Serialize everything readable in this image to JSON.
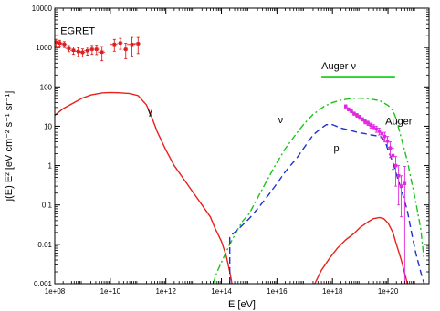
{
  "chart_data": {
    "type": "line",
    "title": "",
    "xlabel": "E [eV]",
    "ylabel": "j(E) E² [eV cm⁻² s⁻¹ sr⁻¹]",
    "x_scale": "log",
    "y_scale": "log",
    "xlim": [
      100000000.0,
      3e+21
    ],
    "ylim": [
      0.001,
      10000
    ],
    "grid": false,
    "x_ticks": [
      {
        "value": 100000000.0,
        "label": "1e+08"
      },
      {
        "value": 10000000000.0,
        "label": "1e+10"
      },
      {
        "value": 1000000000000.0,
        "label": "1e+12"
      },
      {
        "value": 100000000000000.0,
        "label": "1e+14"
      },
      {
        "value": 1e+16,
        "label": "1e+16"
      },
      {
        "value": 1e+18,
        "label": "1e+18"
      },
      {
        "value": 1e+20,
        "label": "1e+20"
      }
    ],
    "y_ticks": [
      {
        "value": 0.001,
        "label": "0.001"
      },
      {
        "value": 0.01,
        "label": "0.01"
      },
      {
        "value": 0.1,
        "label": "0.1"
      },
      {
        "value": 1,
        "label": "1"
      },
      {
        "value": 10,
        "label": "10"
      },
      {
        "value": 100,
        "label": "100"
      },
      {
        "value": 1000,
        "label": "1000"
      },
      {
        "value": 10000,
        "label": "10000"
      }
    ],
    "annotations": [
      {
        "text": "EGRET",
        "x": 160000000.0,
        "y": 2200
      },
      {
        "text": "γ",
        "x": 220000000000.0,
        "y": 20
      },
      {
        "text": "ν",
        "x": 1.1e+16,
        "y": 12
      },
      {
        "text": "p",
        "x": 1.1e+18,
        "y": 2.3
      },
      {
        "text": "Auger",
        "x": 8e+19,
        "y": 11
      },
      {
        "text": "Auger ν",
        "x": 4e+17,
        "y": 280
      }
    ],
    "series": [
      {
        "kind": "curve",
        "color": "#e8201c",
        "dash": "solid",
        "x": [
          100000000.0,
          200000000.0,
          500000000.0,
          1000000000.0,
          2000000000.0,
          5000000000.0,
          10000000000.0,
          20000000000.0,
          50000000000.0,
          100000000000.0,
          200000000000.0,
          300000000000.0,
          500000000000.0,
          1000000000000.0,
          2000000000000.0,
          5000000000000.0,
          10000000000000.0,
          20000000000000.0,
          40000000000000.0,
          60000000000000.0,
          100000000000000.0,
          150000000000000.0,
          200000000000000.0,
          240000000000000.0
        ],
        "y": [
          19,
          28,
          40,
          52,
          62,
          70,
          72,
          71,
          68,
          60,
          35,
          18,
          7,
          2.5,
          1.0,
          0.4,
          0.2,
          0.1,
          0.05,
          0.025,
          0.012,
          0.005,
          0.002,
          0.001
        ]
      },
      {
        "kind": "curve",
        "color": "#e8201c",
        "dash": "solid",
        "x": [
          2.3e+17,
          4e+17,
          8e+17,
          1.5e+18,
          3e+18,
          6e+18,
          1e+19,
          2e+19,
          3e+19,
          5e+19,
          7e+19,
          1e+20,
          1.5e+20,
          2e+20,
          3e+20,
          5e+20
        ],
        "y": [
          0.001,
          0.0022,
          0.0045,
          0.008,
          0.013,
          0.019,
          0.027,
          0.038,
          0.045,
          0.048,
          0.045,
          0.035,
          0.02,
          0.01,
          0.004,
          0.001
        ]
      },
      {
        "kind": "curve",
        "color": "#19c41a",
        "dash": "dashdot",
        "x": [
          50000000000000.0,
          70000000000000.0,
          100000000000000.0,
          200000000000000.0,
          400000000000000.0,
          600000000000000.0,
          1000000000000000.0,
          2000000000000000.0,
          5000000000000000.0,
          1e+16,
          2e+16,
          5e+16,
          1e+17,
          2e+17,
          5e+17,
          1e+18,
          2e+18,
          5e+18,
          1e+19,
          2e+19,
          5e+19,
          1e+20,
          1.5e+20,
          2e+20,
          3e+20,
          5e+20,
          7e+20,
          1e+21,
          1.5e+21,
          2e+21
        ],
        "y": [
          0.001,
          0.002,
          0.0035,
          0.01,
          0.025,
          0.04,
          0.06,
          0.15,
          0.5,
          1.2,
          2.7,
          6.5,
          12,
          20,
          32,
          40,
          46,
          51,
          52,
          50,
          45,
          34,
          25,
          15,
          5,
          1.3,
          0.4,
          0.12,
          0.025,
          0.004
        ]
      },
      {
        "kind": "curve",
        "color": "#1e2fd3",
        "dash": "dashed",
        "x": [
          200000000000000.0,
          200000000000000.0,
          250000000000000.0,
          500000000000000.0,
          1000000000000000.0,
          2000000000000000.0,
          5000000000000000.0,
          1e+16,
          2e+16,
          5e+16,
          1e+17,
          2e+17,
          4e+17,
          6e+17,
          1e+18,
          2e+18,
          4e+18,
          8e+18,
          1.5e+19,
          2.5e+19,
          4e+19,
          6e+19,
          8e+19,
          1e+20,
          1.5e+20,
          2e+20,
          3e+20,
          5e+20,
          7e+20,
          1e+21,
          1.5e+21,
          2e+21
        ],
        "y": [
          0.001,
          0.015,
          0.018,
          0.028,
          0.045,
          0.08,
          0.18,
          0.35,
          0.7,
          1.5,
          3,
          6,
          9,
          11,
          11,
          9,
          8,
          7,
          6.5,
          6,
          5.7,
          5.3,
          4,
          2.5,
          1.2,
          0.6,
          0.25,
          0.07,
          0.02,
          0.006,
          0.002,
          0.001
        ]
      },
      {
        "kind": "errorbars",
        "color": "#dc1f1f",
        "points": [
          {
            "x": 110000000.0,
            "y": 1350,
            "dx": 50000000.0,
            "dy": 260
          },
          {
            "x": 150000000.0,
            "y": 1300,
            "dx": 40000000.0,
            "dy": 220
          },
          {
            "x": 220000000.0,
            "y": 1200,
            "dx": 50000000.0,
            "dy": 200
          },
          {
            "x": 320000000.0,
            "y": 950,
            "dx": 80000000.0,
            "dy": 170
          },
          {
            "x": 470000000.0,
            "y": 850,
            "dx": 110000000.0,
            "dy": 180
          },
          {
            "x": 700000000.0,
            "y": 790,
            "dx": 160000000.0,
            "dy": 200
          },
          {
            "x": 1000000000.0,
            "y": 750,
            "dx": 240000000.0,
            "dy": 170
          },
          {
            "x": 1500000000.0,
            "y": 830,
            "dx": 350000000.0,
            "dy": 190
          },
          {
            "x": 2200000000.0,
            "y": 900,
            "dx": 500000000.0,
            "dy": 230
          },
          {
            "x": 3200000000.0,
            "y": 900,
            "dx": 700000000.0,
            "dy": 240
          },
          {
            "x": 5000000000.0,
            "y": 760,
            "dx": 1400000000.0,
            "dy": 300
          },
          {
            "x": 14000000000.0,
            "y": 1200,
            "dx": 4000000000.0,
            "dy": 400
          },
          {
            "x": 23000000000.0,
            "y": 1300,
            "dx": 5000000000.0,
            "dy": 400
          },
          {
            "x": 36000000000.0,
            "y": 900,
            "dx": 7000000000.0,
            "dy": 380
          },
          {
            "x": 60000000000.0,
            "y": 1200,
            "dx": 20000000000.0,
            "dy": 600
          },
          {
            "x": 100000000000.0,
            "y": 1250,
            "dx": 30000000000.0,
            "dy": 550
          }
        ]
      },
      {
        "kind": "errorbars",
        "color": "#e02adf",
        "points": [
          {
            "x": 3e+18,
            "y": 32,
            "dx": 0,
            "dy": 3
          },
          {
            "x": 3.8e+18,
            "y": 27,
            "dx": 0,
            "dy": 2.5
          },
          {
            "x": 4.8e+18,
            "y": 24,
            "dx": 0,
            "dy": 2
          },
          {
            "x": 6e+18,
            "y": 21,
            "dx": 0,
            "dy": 2
          },
          {
            "x": 7.6e+18,
            "y": 19,
            "dx": 0,
            "dy": 2
          },
          {
            "x": 9.6e+18,
            "y": 17,
            "dx": 0,
            "dy": 2
          },
          {
            "x": 1.2e+19,
            "y": 15,
            "dx": 0,
            "dy": 1.5
          },
          {
            "x": 1.5e+19,
            "y": 13,
            "dx": 0,
            "dy": 1.5
          },
          {
            "x": 1.9e+19,
            "y": 12,
            "dx": 0,
            "dy": 1.5
          },
          {
            "x": 2.4e+19,
            "y": 10.5,
            "dx": 0,
            "dy": 1.5
          },
          {
            "x": 3e+19,
            "y": 9.5,
            "dx": 0,
            "dy": 1.5
          },
          {
            "x": 3.8e+19,
            "y": 8.5,
            "dx": 0,
            "dy": 1.5
          },
          {
            "x": 4.8e+19,
            "y": 7.5,
            "dx": 0,
            "dy": 1.5
          },
          {
            "x": 6e+19,
            "y": 6.5,
            "dx": 0,
            "dy": 1.5
          },
          {
            "x": 7.6e+19,
            "y": 5.5,
            "dx": 0,
            "dy": 1.5
          },
          {
            "x": 9.6e+19,
            "y": 4.2,
            "dx": 0,
            "dy": 1.3
          },
          {
            "x": 1.2e+20,
            "y": 2.8,
            "dx": 0,
            "dy": 1.2
          },
          {
            "x": 1.5e+20,
            "y": 1.8,
            "dx": 0,
            "dy": 1.0
          },
          {
            "x": 1.9e+20,
            "y": 1.0,
            "dx": 0,
            "dy": 0.7
          },
          {
            "x": 2.4e+20,
            "y": 0.55,
            "dx": 0,
            "dy": 0.45
          },
          {
            "x": 3e+20,
            "y": 0.3,
            "dx": 0,
            "dy": 0.25
          },
          {
            "x": 4e+20,
            "y": 0.35,
            "dx": 0,
            "dy": 0.6
          }
        ]
      },
      {
        "kind": "hline",
        "color": "#2ad42a",
        "x": [
          4e+17,
          1.8e+20
        ],
        "y": 180
      }
    ]
  }
}
